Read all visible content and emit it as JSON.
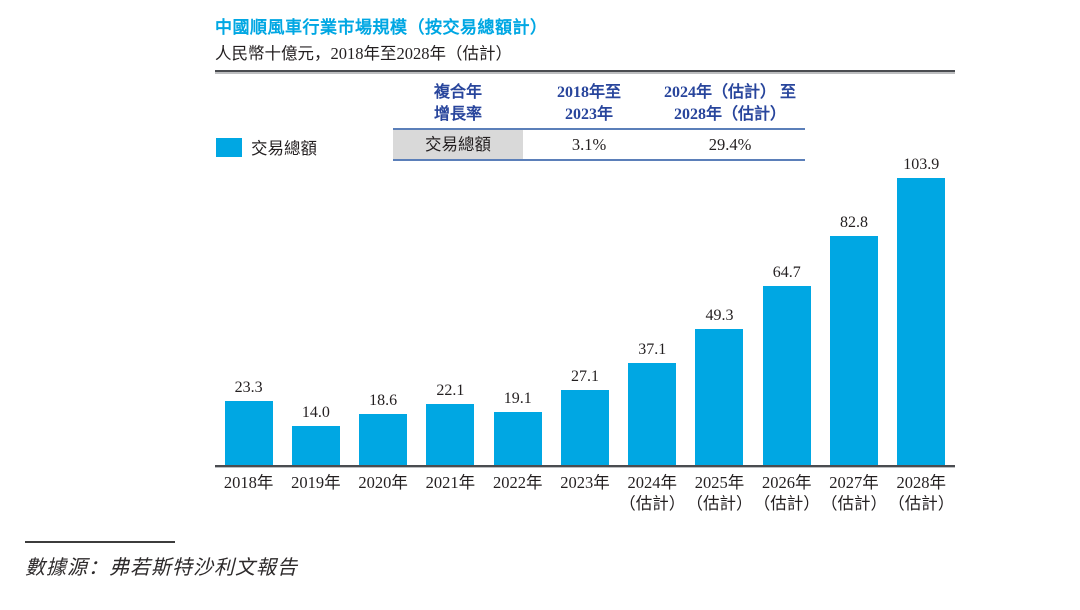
{
  "page": {
    "title": "中國順風車行業市場規模（按交易總額計）",
    "subtitle": "人民幣十億元，2018年至2028年（估計）",
    "source": "數據源：弗若斯特沙利文報告"
  },
  "legend": {
    "label": "交易總額"
  },
  "cagr_table": {
    "col1_line1": "複合年",
    "col1_line2": "增長率",
    "col2_line1": "2018年至",
    "col2_line2": "2023年",
    "col3_line1": "2024年（估計） 至",
    "col3_line2": "2028年（估計）",
    "row_label": "交易總額",
    "cagr_2018_2023": "3.1%",
    "cagr_2024_2028": "29.4%"
  },
  "colors": {
    "accent_cyan": "#00a7e3",
    "table_header_blue": "#28459c",
    "table_line_blue": "#5b7fb9",
    "shaded_cell_grey": "#d9d9d9",
    "axis_grey": "#4a4c50"
  },
  "chart_data": {
    "type": "bar",
    "title": "中國順風車行業市場規模（按交易總額計）",
    "unit_label": "人民幣十億元",
    "period_label": "2018年至2028年（估計）",
    "series_name": "交易總額",
    "categories": [
      "2018年",
      "2019年",
      "2020年",
      "2021年",
      "2022年",
      "2023年",
      "2024年",
      "2025年",
      "2026年",
      "2027年",
      "2028年"
    ],
    "category_notes": [
      "",
      "",
      "",
      "",
      "",
      "",
      "（估計）",
      "（估計）",
      "（估計）",
      "（估計）",
      "（估計）"
    ],
    "values": [
      23.3,
      14.0,
      18.6,
      22.1,
      19.1,
      27.1,
      37.1,
      49.3,
      64.7,
      82.8,
      103.9
    ],
    "value_labels": [
      "23.3",
      "14.0",
      "18.6",
      "22.1",
      "19.1",
      "27.1",
      "37.1",
      "49.3",
      "64.7",
      "82.8",
      "103.9"
    ],
    "ylim": [
      0,
      110
    ],
    "grid": false,
    "legend_position": "top-left",
    "bar_color": "#00a7e3",
    "cagr": {
      "2018_2023": "3.1%",
      "2024_2028_est": "29.4%"
    }
  }
}
